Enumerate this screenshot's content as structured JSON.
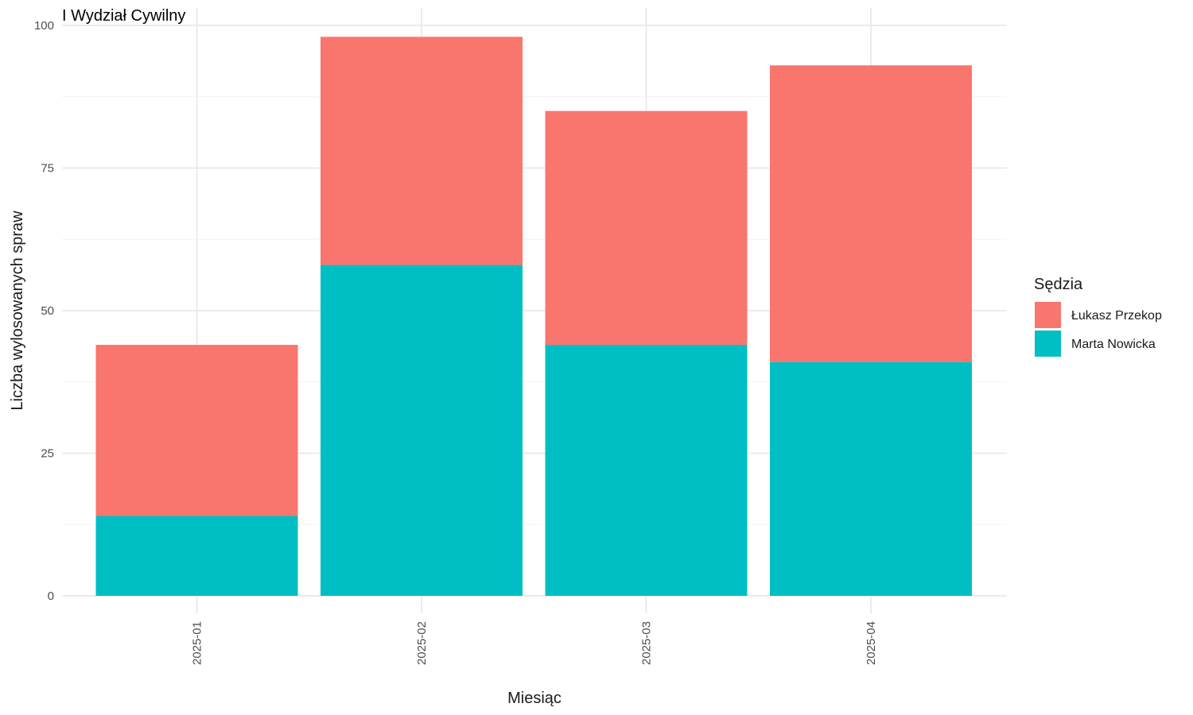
{
  "chart_data": {
    "type": "bar",
    "stacked": true,
    "title": "I Wydział Cywilny",
    "xlabel": "Miesiąc",
    "ylabel": "Liczba wylosowanych spraw",
    "categories": [
      "2025-01",
      "2025-02",
      "2025-03",
      "2025-04"
    ],
    "series": [
      {
        "name": "Marta Nowicka",
        "values": [
          14,
          58,
          44,
          41
        ],
        "color": "#00BFC4"
      },
      {
        "name": "Łukasz Przekop",
        "values": [
          30,
          40,
          41,
          52
        ],
        "color": "#F8766D"
      }
    ],
    "ylim": [
      0,
      100
    ],
    "yticks": [
      0,
      25,
      50,
      75,
      100
    ],
    "grid": true,
    "legend": {
      "title": "Sędzia",
      "position": "right",
      "order": [
        "Łukasz Przekop",
        "Marta Nowicka"
      ]
    }
  }
}
